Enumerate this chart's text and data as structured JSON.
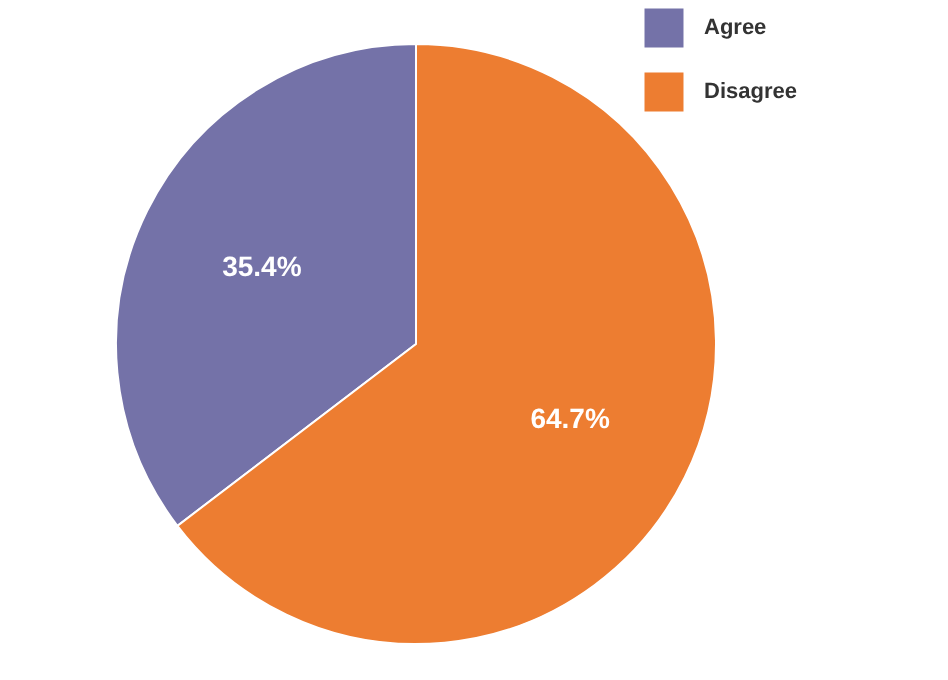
{
  "chart_data": {
    "type": "pie",
    "categories": [
      "Agree",
      "Disagree"
    ],
    "values": [
      35.4,
      64.7
    ],
    "colors": [
      "#7472a8",
      "#ed7d31"
    ],
    "value_labels": [
      "35.4%",
      "64.7%"
    ],
    "legend": "top right"
  }
}
